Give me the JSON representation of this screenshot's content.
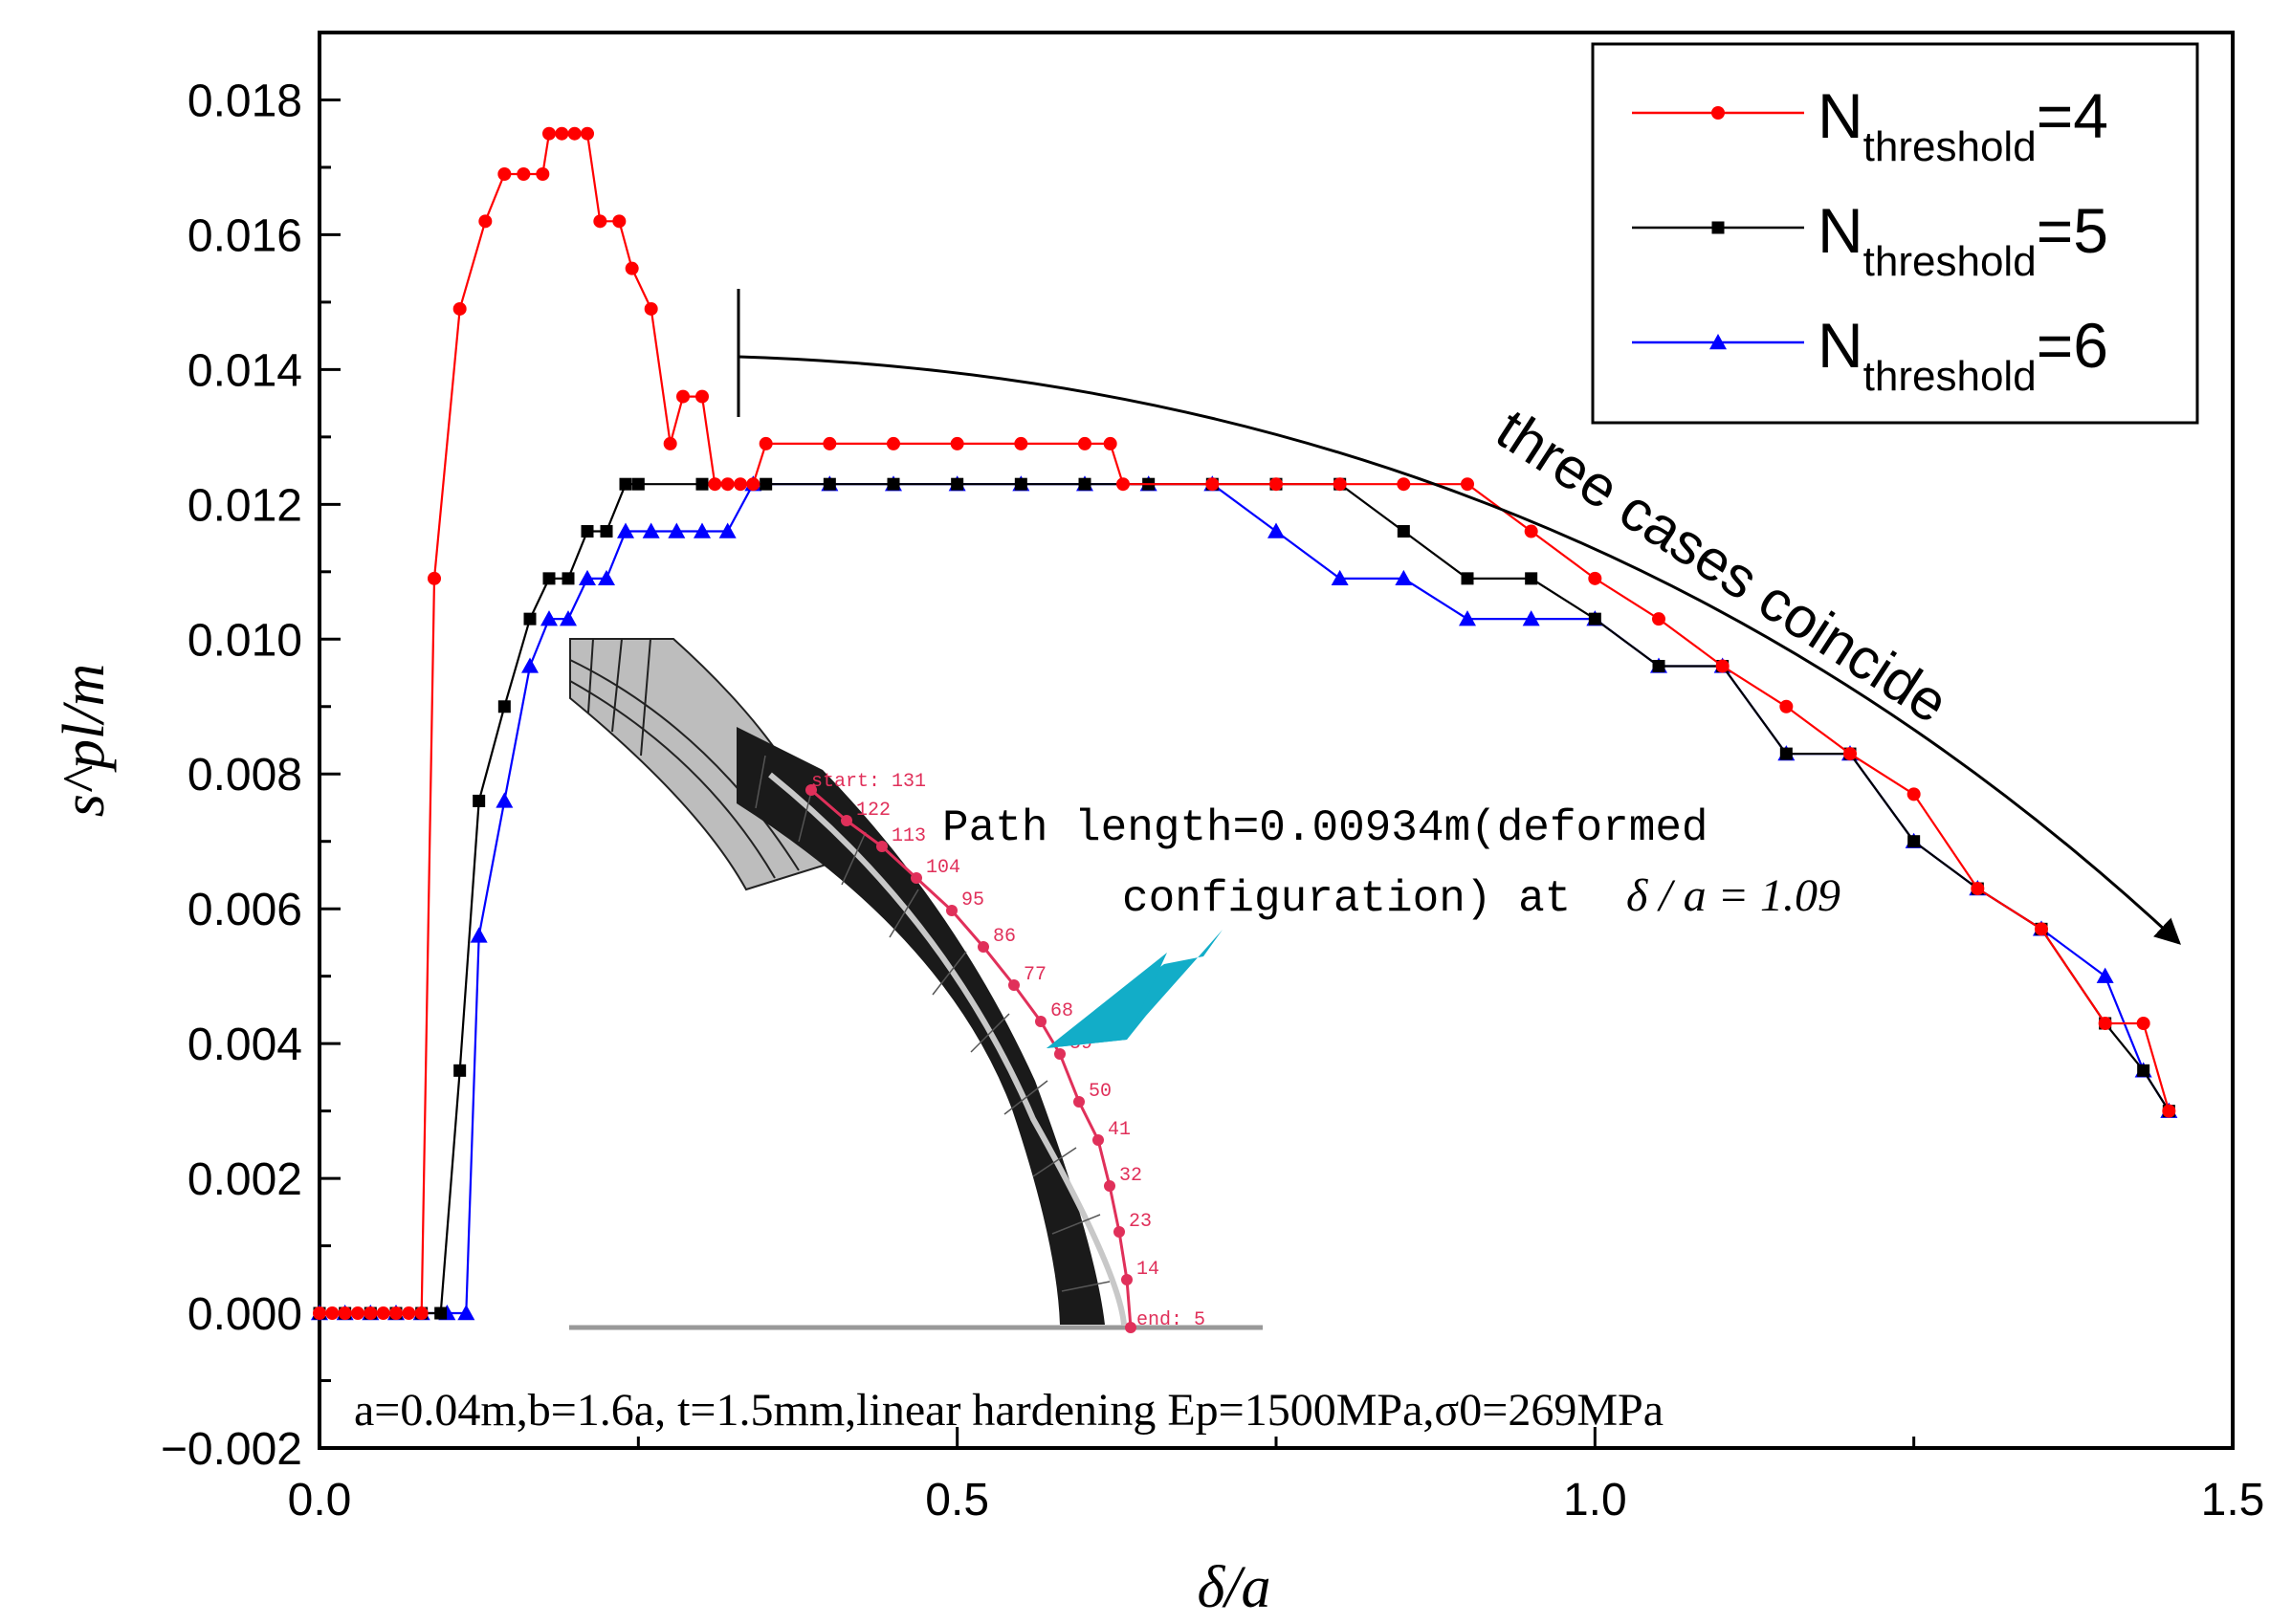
{
  "chart_data": {
    "type": "line",
    "xlabel": "δ/a",
    "ylabel": "s^pl/m",
    "xlim": [
      0.0,
      1.5
    ],
    "ylim": [
      -0.002,
      0.019
    ],
    "x_ticks": [
      "0.0",
      "0.5",
      "1.0",
      "1.5"
    ],
    "y_ticks": [
      "−0.002",
      "0.000",
      "0.002",
      "0.004",
      "0.006",
      "0.008",
      "0.010",
      "0.012",
      "0.014",
      "0.016",
      "0.018"
    ],
    "y_tick_values": [
      -0.002,
      0.0,
      0.002,
      0.004,
      0.006,
      0.008,
      0.01,
      0.012,
      0.014,
      0.016,
      0.018
    ],
    "x_tick_values": [
      0.0,
      0.5,
      1.0,
      1.5
    ],
    "legend": {
      "placement": "top-right",
      "entries": [
        {
          "prefix": "N",
          "subscript": "threshold",
          "suffix": "=4"
        },
        {
          "prefix": "N",
          "subscript": "threshold",
          "suffix": "=5"
        },
        {
          "prefix": "N",
          "subscript": "threshold",
          "suffix": "=6"
        }
      ]
    },
    "series": [
      {
        "name": "N_threshold=4",
        "color": "#ff0000",
        "marker": "circle",
        "points": [
          [
            0.0,
            0.0
          ],
          [
            0.01,
            0.0
          ],
          [
            0.02,
            0.0
          ],
          [
            0.03,
            0.0
          ],
          [
            0.04,
            0.0
          ],
          [
            0.05,
            0.0
          ],
          [
            0.06,
            0.0
          ],
          [
            0.07,
            0.0
          ],
          [
            0.08,
            0.0
          ],
          [
            0.09,
            0.0109
          ],
          [
            0.11,
            0.0149
          ],
          [
            0.13,
            0.0162
          ],
          [
            0.145,
            0.0169
          ],
          [
            0.16,
            0.0169
          ],
          [
            0.175,
            0.0169
          ],
          [
            0.18,
            0.0175
          ],
          [
            0.19,
            0.0175
          ],
          [
            0.2,
            0.0175
          ],
          [
            0.21,
            0.0175
          ],
          [
            0.22,
            0.0162
          ],
          [
            0.235,
            0.0162
          ],
          [
            0.245,
            0.0155
          ],
          [
            0.26,
            0.0149
          ],
          [
            0.275,
            0.0129
          ],
          [
            0.285,
            0.0136
          ],
          [
            0.3,
            0.0136
          ],
          [
            0.31,
            0.0123
          ],
          [
            0.32,
            0.0123
          ],
          [
            0.33,
            0.0123
          ],
          [
            0.34,
            0.0123
          ],
          [
            0.35,
            0.0129
          ],
          [
            0.4,
            0.0129
          ],
          [
            0.45,
            0.0129
          ],
          [
            0.5,
            0.0129
          ],
          [
            0.55,
            0.0129
          ],
          [
            0.6,
            0.0129
          ],
          [
            0.62,
            0.0129
          ],
          [
            0.63,
            0.0123
          ],
          [
            0.7,
            0.0123
          ],
          [
            0.75,
            0.0123
          ],
          [
            0.8,
            0.0123
          ],
          [
            0.85,
            0.0123
          ],
          [
            0.9,
            0.0123
          ],
          [
            0.95,
            0.0116
          ],
          [
            1.0,
            0.0109
          ],
          [
            1.05,
            0.0103
          ],
          [
            1.1,
            0.0096
          ],
          [
            1.15,
            0.009
          ],
          [
            1.2,
            0.0083
          ],
          [
            1.25,
            0.0077
          ],
          [
            1.3,
            0.0063
          ],
          [
            1.35,
            0.0057
          ],
          [
            1.4,
            0.0043
          ],
          [
            1.43,
            0.0043
          ],
          [
            1.45,
            0.003
          ]
        ]
      },
      {
        "name": "N_threshold=5",
        "color": "#000000",
        "marker": "square",
        "points": [
          [
            0.0,
            0.0
          ],
          [
            0.02,
            0.0
          ],
          [
            0.04,
            0.0
          ],
          [
            0.06,
            0.0
          ],
          [
            0.08,
            0.0
          ],
          [
            0.095,
            0.0
          ],
          [
            0.11,
            0.0036
          ],
          [
            0.125,
            0.0076
          ],
          [
            0.145,
            0.009
          ],
          [
            0.165,
            0.0103
          ],
          [
            0.18,
            0.0109
          ],
          [
            0.195,
            0.0109
          ],
          [
            0.21,
            0.0116
          ],
          [
            0.225,
            0.0116
          ],
          [
            0.24,
            0.0123
          ],
          [
            0.25,
            0.0123
          ],
          [
            0.3,
            0.0123
          ],
          [
            0.35,
            0.0123
          ],
          [
            0.4,
            0.0123
          ],
          [
            0.45,
            0.0123
          ],
          [
            0.5,
            0.0123
          ],
          [
            0.55,
            0.0123
          ],
          [
            0.6,
            0.0123
          ],
          [
            0.65,
            0.0123
          ],
          [
            0.7,
            0.0123
          ],
          [
            0.75,
            0.0123
          ],
          [
            0.8,
            0.0123
          ],
          [
            0.85,
            0.0116
          ],
          [
            0.9,
            0.0109
          ],
          [
            0.95,
            0.0109
          ],
          [
            1.0,
            0.0103
          ],
          [
            1.05,
            0.0096
          ],
          [
            1.1,
            0.0096
          ],
          [
            1.15,
            0.0083
          ],
          [
            1.2,
            0.0083
          ],
          [
            1.25,
            0.007
          ],
          [
            1.3,
            0.0063
          ],
          [
            1.35,
            0.0057
          ],
          [
            1.4,
            0.0043
          ],
          [
            1.43,
            0.0036
          ],
          [
            1.45,
            0.003
          ]
        ]
      },
      {
        "name": "N_threshold=6",
        "color": "#0000ff",
        "marker": "triangle",
        "points": [
          [
            0.0,
            0.0
          ],
          [
            0.02,
            0.0
          ],
          [
            0.04,
            0.0
          ],
          [
            0.06,
            0.0
          ],
          [
            0.08,
            0.0
          ],
          [
            0.1,
            0.0
          ],
          [
            0.115,
            0.0
          ],
          [
            0.125,
            0.0056
          ],
          [
            0.145,
            0.0076
          ],
          [
            0.165,
            0.0096
          ],
          [
            0.18,
            0.0103
          ],
          [
            0.195,
            0.0103
          ],
          [
            0.21,
            0.0109
          ],
          [
            0.225,
            0.0109
          ],
          [
            0.24,
            0.0116
          ],
          [
            0.26,
            0.0116
          ],
          [
            0.28,
            0.0116
          ],
          [
            0.3,
            0.0116
          ],
          [
            0.32,
            0.0116
          ],
          [
            0.34,
            0.0123
          ],
          [
            0.4,
            0.0123
          ],
          [
            0.45,
            0.0123
          ],
          [
            0.5,
            0.0123
          ],
          [
            0.55,
            0.0123
          ],
          [
            0.6,
            0.0123
          ],
          [
            0.65,
            0.0123
          ],
          [
            0.7,
            0.0123
          ],
          [
            0.75,
            0.0116
          ],
          [
            0.8,
            0.0109
          ],
          [
            0.85,
            0.0109
          ],
          [
            0.9,
            0.0103
          ],
          [
            0.95,
            0.0103
          ],
          [
            1.0,
            0.0103
          ],
          [
            1.05,
            0.0096
          ],
          [
            1.1,
            0.0096
          ],
          [
            1.15,
            0.0083
          ],
          [
            1.2,
            0.0083
          ],
          [
            1.25,
            0.007
          ],
          [
            1.3,
            0.0063
          ],
          [
            1.35,
            0.0057
          ],
          [
            1.4,
            0.005
          ],
          [
            1.43,
            0.0036
          ],
          [
            1.45,
            0.003
          ]
        ]
      }
    ],
    "annotations": {
      "coincide": "three cases coincide",
      "path_length_line1": "Path length=0.00934m(deformed",
      "path_length_line2": "configuration) at",
      "path_length_formula": "δ / a = 1.09",
      "bottom_note": "a=0.04m,b=1.6a, t=1.5mm,linear hardening Ep=1500MPa,σ0=269MPa",
      "node_start": "start: 131",
      "node_end": "end: 5",
      "node_labels": [
        "122",
        "113",
        "104",
        "95",
        "86",
        "77",
        "68",
        "59",
        "50",
        "41",
        "32",
        "23",
        "14"
      ]
    }
  }
}
